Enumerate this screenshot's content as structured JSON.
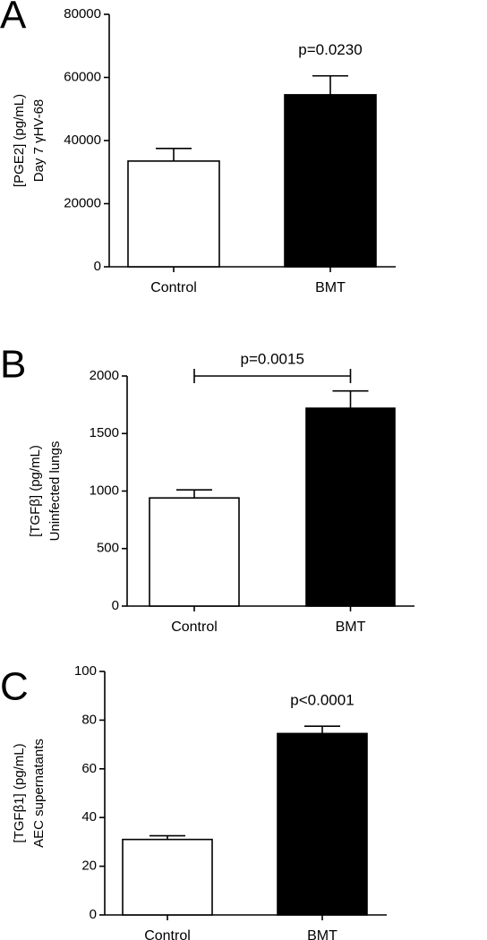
{
  "chart_data": [
    {
      "type": "bar",
      "panel": "A",
      "ylabel": [
        "[PGE2] (pg/mL)",
        "Day 7 γHV-68"
      ],
      "categories": [
        "Control",
        "BMT"
      ],
      "values": [
        33500,
        54500
      ],
      "errors": [
        4000,
        6000
      ],
      "colors": [
        "#ffffff",
        "#000000"
      ],
      "ylim": [
        0,
        80000
      ],
      "yticks": [
        0,
        20000,
        40000,
        60000,
        80000
      ],
      "annotation": "p=0.0230"
    },
    {
      "type": "bar",
      "panel": "B",
      "ylabel": [
        "[TGFβ] (pg/mL)",
        "Uninfected lungs"
      ],
      "categories": [
        "Control",
        "BMT"
      ],
      "values": [
        940,
        1720
      ],
      "errors": [
        70,
        150
      ],
      "colors": [
        "#ffffff",
        "#000000"
      ],
      "ylim": [
        0,
        2000
      ],
      "yticks": [
        0,
        500,
        1000,
        1500,
        2000
      ],
      "annotation": "p=0.0015",
      "annotation_bracket": true
    },
    {
      "type": "bar",
      "panel": "C",
      "ylabel": [
        "[TGFβ1] (pg/mL)",
        "AEC supernatants"
      ],
      "categories": [
        "Control",
        "BMT"
      ],
      "values": [
        31,
        74.5
      ],
      "errors": [
        1.5,
        3
      ],
      "colors": [
        "#ffffff",
        "#000000"
      ],
      "ylim": [
        0,
        100
      ],
      "yticks": [
        0,
        20,
        40,
        60,
        80,
        100
      ],
      "annotation": "p<0.0001"
    }
  ]
}
